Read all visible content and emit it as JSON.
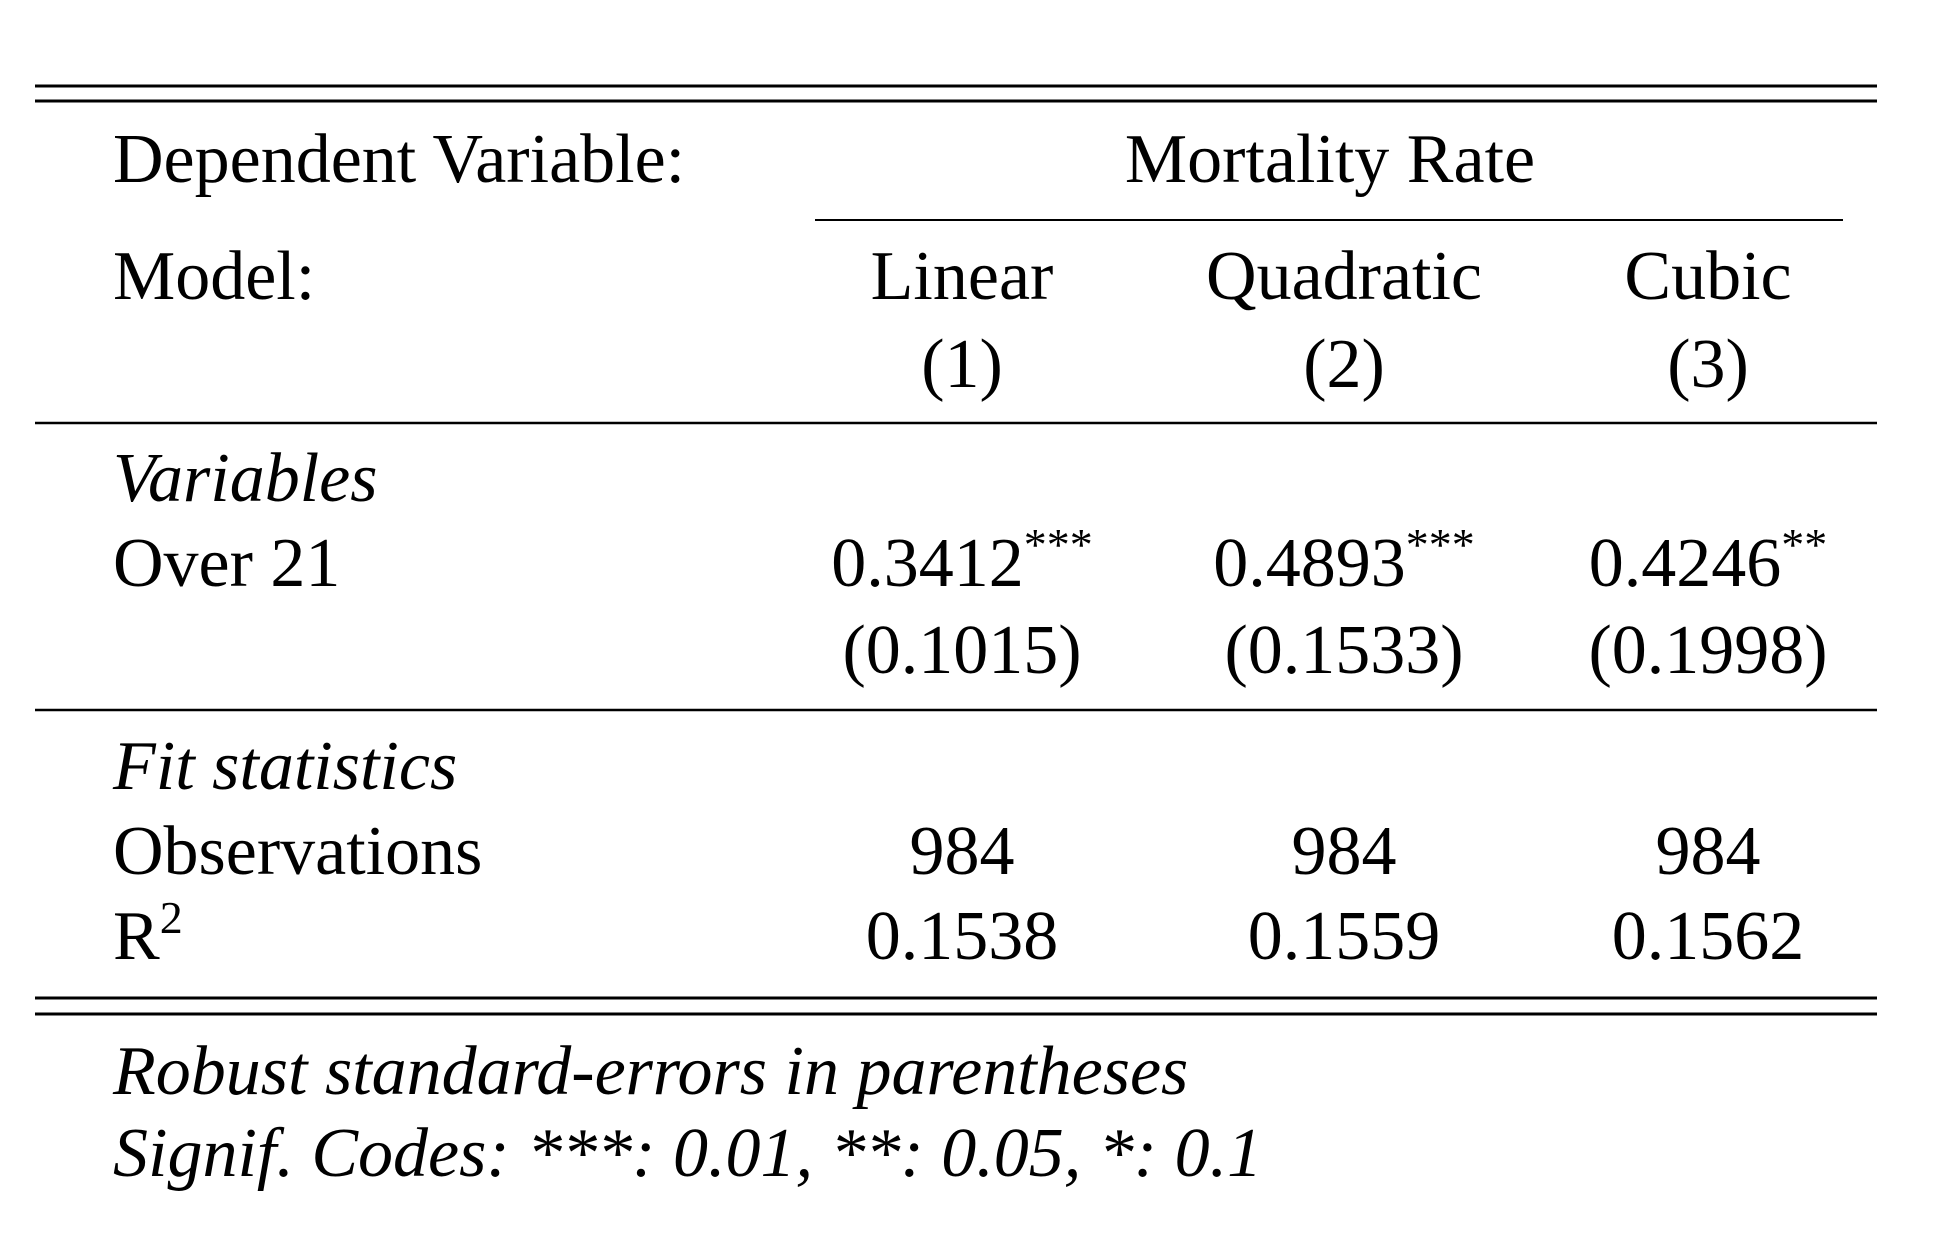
{
  "header": {
    "dependent_label": "Dependent Variable:",
    "dependent": "Mortality Rate",
    "model_label": "Model:"
  },
  "columns": [
    {
      "model": "Linear",
      "number": "(1)"
    },
    {
      "model": "Quadratic",
      "number": "(2)"
    },
    {
      "model": "Cubic",
      "number": "(3)"
    }
  ],
  "sections": [
    {
      "title": "Variables",
      "rows": [
        {
          "label": "Over 21",
          "cells": [
            {
              "estimate": 0.3412,
              "stars": "***",
              "se": "(0.1015)"
            },
            {
              "estimate": 0.4893,
              "stars": "***",
              "se": "(0.1533)"
            },
            {
              "estimate": 0.4246,
              "stars": "**",
              "se": "(0.1998)"
            }
          ]
        }
      ]
    },
    {
      "title": "Fit statistics",
      "rows": [
        {
          "label": "Observations",
          "cells": [
            984,
            984,
            984
          ]
        },
        {
          "label": "R",
          "label_sup": "2",
          "cells": [
            0.1538,
            0.1559,
            0.1562
          ]
        }
      ]
    }
  ],
  "notes": [
    "Robust standard-errors in parentheses",
    "Signif. Codes: ***: 0.01, **: 0.05, *: 0.1"
  ]
}
